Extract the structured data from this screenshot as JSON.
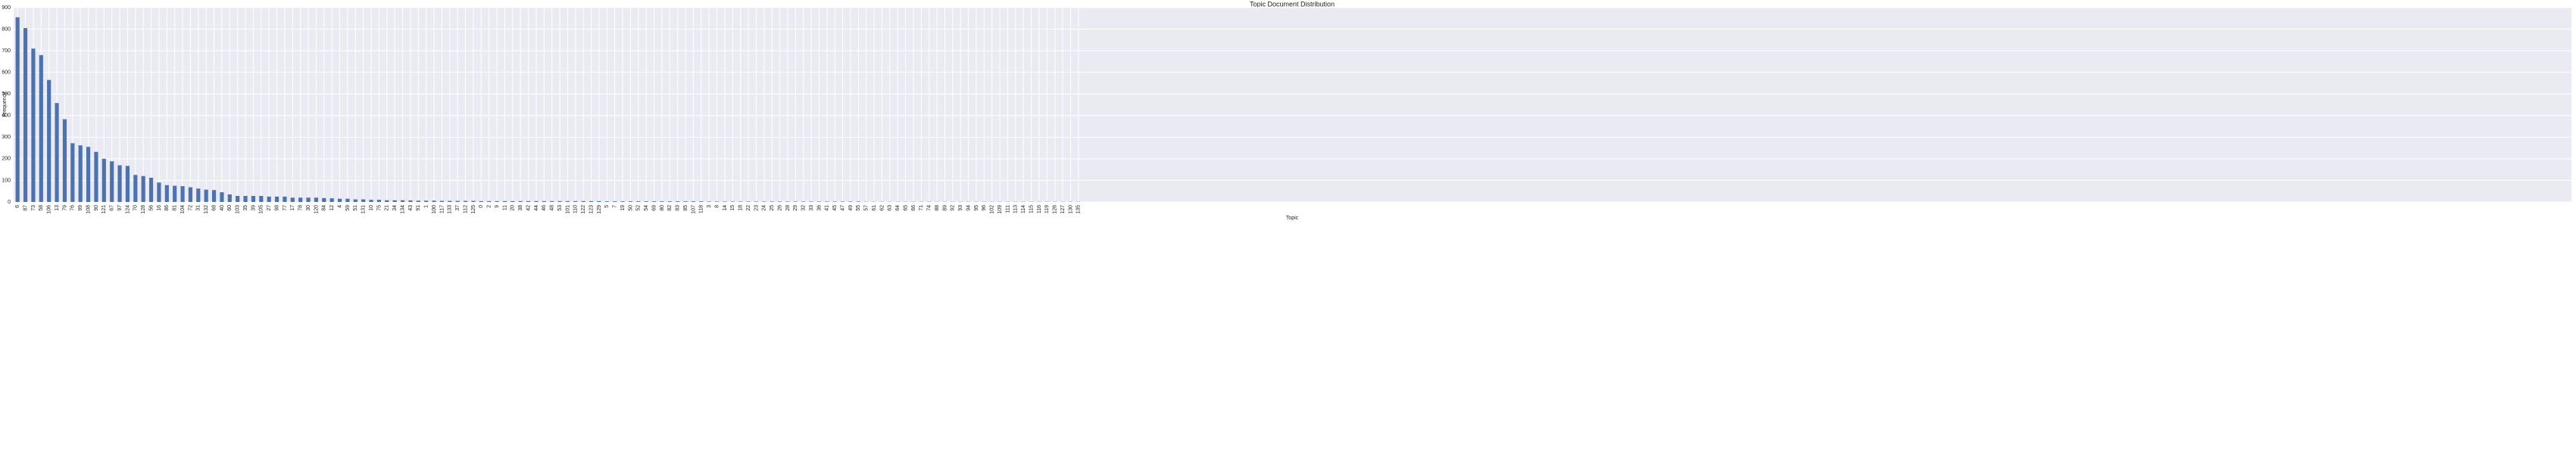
{
  "chart_data": {
    "type": "bar",
    "title": "Topic Document Distribution",
    "x_label": "Topic",
    "y_label": "Frequency",
    "categories": [
      "6",
      "87",
      "73",
      "58",
      "106",
      "13",
      "79",
      "76",
      "99",
      "108",
      "90",
      "121",
      "67",
      "97",
      "124",
      "70",
      "128",
      "56",
      "16",
      "86",
      "81",
      "104",
      "72",
      "31",
      "132",
      "68",
      "40",
      "60",
      "103",
      "35",
      "39",
      "105",
      "27",
      "98",
      "77",
      "17",
      "78",
      "30",
      "120",
      "84",
      "12",
      "4",
      "59",
      "51",
      "131",
      "10",
      "75",
      "21",
      "34",
      "134",
      "43",
      "91",
      "1",
      "100",
      "117",
      "133",
      "37",
      "112",
      "125",
      "0",
      "2",
      "9",
      "11",
      "20",
      "38",
      "42",
      "44",
      "46",
      "48",
      "53",
      "101",
      "110",
      "122",
      "123",
      "129",
      "5",
      "7",
      "19",
      "50",
      "52",
      "54",
      "69",
      "80",
      "82",
      "83",
      "85",
      "107",
      "118",
      "3",
      "8",
      "14",
      "15",
      "18",
      "22",
      "23",
      "24",
      "25",
      "26",
      "28",
      "29",
      "32",
      "33",
      "36",
      "41",
      "45",
      "47",
      "49",
      "55",
      "57",
      "61",
      "62",
      "63",
      "64",
      "65",
      "66",
      "71",
      "74",
      "88",
      "89",
      "92",
      "93",
      "94",
      "95",
      "96",
      "102",
      "109",
      "111",
      "113",
      "114",
      "115",
      "116",
      "119",
      "126",
      "127",
      "130",
      "135"
    ],
    "values": [
      855,
      805,
      710,
      680,
      565,
      458,
      383,
      272,
      262,
      255,
      232,
      200,
      188,
      170,
      167,
      125,
      120,
      112,
      90,
      78,
      75,
      73,
      68,
      62,
      57,
      55,
      45,
      35,
      28,
      28,
      28,
      28,
      25,
      25,
      25,
      20,
      20,
      20,
      20,
      18,
      17,
      15,
      15,
      12,
      12,
      10,
      10,
      8,
      8,
      8,
      7,
      6,
      6,
      6,
      5,
      5,
      5,
      5,
      5,
      4,
      4,
      4,
      4,
      4,
      4,
      4,
      4,
      4,
      4,
      4,
      4,
      4,
      4,
      4,
      4,
      3,
      3,
      3,
      3,
      3,
      3,
      3,
      3,
      3,
      3,
      3,
      3,
      3,
      2,
      2,
      2,
      2,
      2,
      2,
      2,
      2,
      2,
      2,
      2,
      2,
      2,
      2,
      2,
      2,
      2,
      2,
      2,
      2,
      1,
      1,
      1,
      1,
      1,
      1,
      1,
      1,
      1,
      1,
      1,
      1,
      1,
      1,
      1,
      1,
      1,
      1,
      1,
      1,
      1,
      1,
      1,
      1,
      1,
      1,
      1,
      1
    ],
    "color": "#4c72b0",
    "xlim": [
      -0.5,
      325
    ],
    "ylim": [
      0,
      900
    ],
    "yticks": [
      0,
      100,
      200,
      300,
      400,
      500,
      600,
      700,
      800,
      900
    ],
    "grid": true
  }
}
